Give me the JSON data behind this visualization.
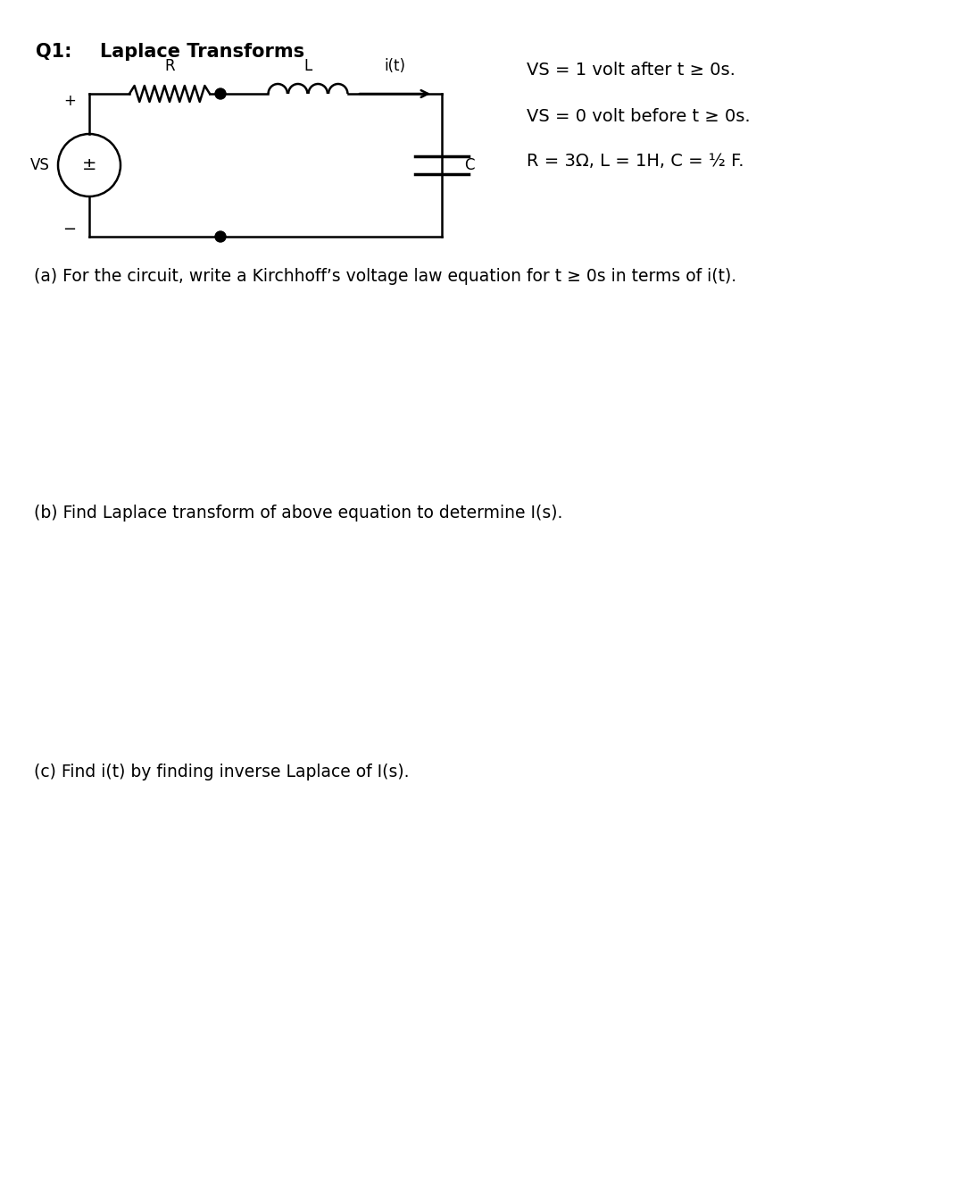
{
  "title_q": "Q1:",
  "title_main": "Laplace Transforms",
  "vs_line1": "VS = 1 volt after t ≥ 0s.",
  "vs_line2": "VS = 0 volt before t ≥ 0s.",
  "vs_line3": "R = 3Ω, L = 1H, C = ½ F.",
  "part_a": "(a) For the circuit, write a Kirchhoff’s voltage law equation for t ≥ 0s in terms of i(t).",
  "part_b": "(b) Find Laplace transform of above equation to determine I(s).",
  "part_c": "(c) Find i(t) by finding inverse Laplace of I(s).",
  "label_R": "R",
  "label_L": "L",
  "label_it": "i(t)",
  "label_C": "C",
  "label_VS": "VS",
  "label_plus": "+",
  "label_minus": "−",
  "bg_color": "#ffffff",
  "text_color": "#000000",
  "circuit_color": "#000000",
  "fig_width": 10.8,
  "fig_height": 13.18,
  "dpi": 100
}
